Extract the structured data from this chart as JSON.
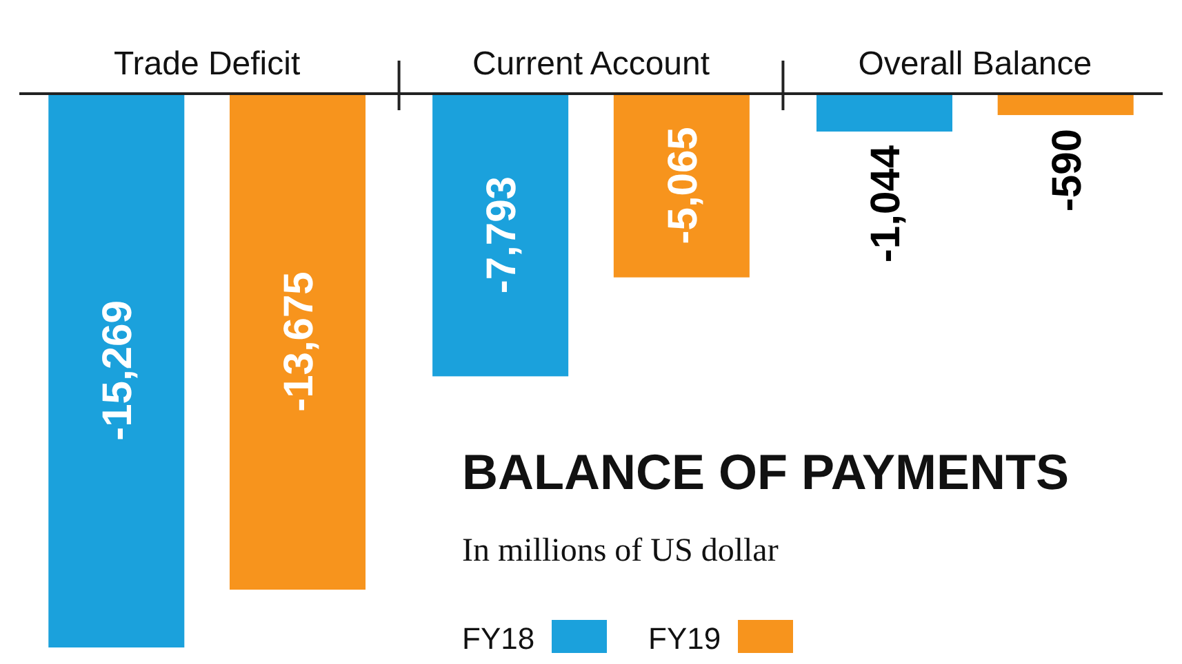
{
  "chart_data": {
    "type": "bar",
    "title": "BALANCE OF PAYMENTS",
    "subtitle": "In millions of US dollar",
    "categories": [
      "Trade Deficit",
      "Current Account",
      "Overall Balance"
    ],
    "legend": "bottom right",
    "series": [
      {
        "name": "FY18",
        "color": "#1ba1dc",
        "values": [
          -15269,
          -7793,
          -1044
        ],
        "value_labels": [
          "-15,269",
          "-7,793",
          "-1,044"
        ]
      },
      {
        "name": "FY19",
        "color": "#f7941d",
        "values": [
          -13675,
          -5065,
          -590
        ],
        "value_labels": [
          "-13,675",
          "-5,065",
          "-590"
        ]
      }
    ]
  }
}
